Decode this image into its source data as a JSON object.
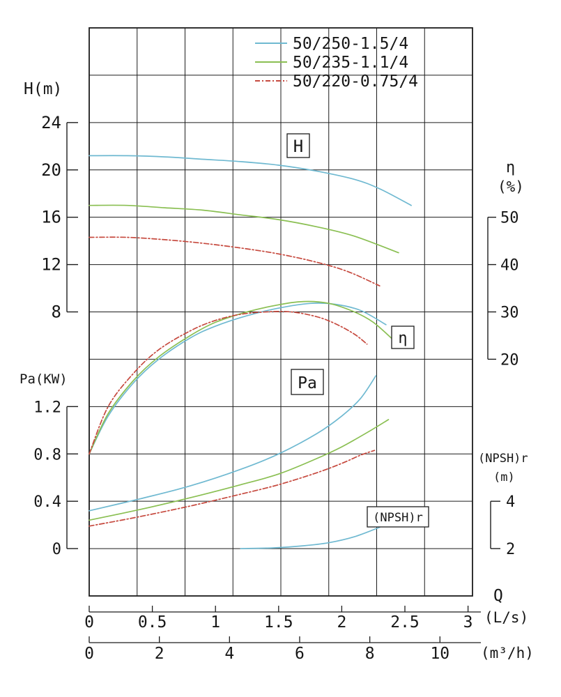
{
  "chart_data": {
    "type": "line",
    "x_axis": {
      "label": "Q",
      "primary_unit": "(L/s)",
      "primary_ticks": [
        "0",
        "0.5",
        "1",
        "1.5",
        "2",
        "2.5",
        "3"
      ],
      "secondary_unit": "(m³/h)",
      "secondary_ticks": [
        "0",
        "2",
        "4",
        "6",
        "8",
        "10"
      ]
    },
    "y_axes": {
      "h": {
        "title": "H(m)",
        "ticks": [
          "24",
          "20",
          "16",
          "12",
          "8"
        ]
      },
      "pa": {
        "title": "Pa(KW)",
        "ticks": [
          "1.2",
          "0.8",
          "0.4",
          "0"
        ]
      },
      "eta": {
        "title": "η",
        "title_unit": "(%)",
        "ticks": [
          "50",
          "40",
          "30",
          "20"
        ]
      },
      "npsh": {
        "title": "(NPSH)r",
        "title_unit": "(m)",
        "ticks": [
          "4",
          "2"
        ]
      }
    },
    "curve_labels": {
      "h": "H",
      "eta": "η",
      "pa": "Pa",
      "npsh": "(NPSH)r"
    },
    "legend": [
      {
        "label": "50/250-1.5/4",
        "color": "#6fb9d1",
        "dash": ""
      },
      {
        "label": "50/235-1.1/4",
        "color": "#8abf52",
        "dash": ""
      },
      {
        "label": "50/220-0.75/4",
        "color": "#c6493e",
        "dash": "7 3 2 3"
      }
    ],
    "series": [
      {
        "pump": "50/250-1.5/4",
        "quantity": "H",
        "unit": "m",
        "color": "#6fb9d1",
        "dash": "",
        "points": [
          [
            0,
            21.2
          ],
          [
            0.3,
            21.2
          ],
          [
            0.6,
            21.1
          ],
          [
            0.9,
            20.9
          ],
          [
            1.2,
            20.7
          ],
          [
            1.5,
            20.4
          ],
          [
            1.8,
            19.9
          ],
          [
            2.1,
            19.2
          ],
          [
            2.3,
            18.4
          ],
          [
            2.55,
            17.0
          ]
        ]
      },
      {
        "pump": "50/235-1.1/4",
        "quantity": "H",
        "unit": "m",
        "color": "#8abf52",
        "dash": "",
        "points": [
          [
            0,
            17.0
          ],
          [
            0.3,
            17.0
          ],
          [
            0.6,
            16.8
          ],
          [
            0.9,
            16.6
          ],
          [
            1.2,
            16.2
          ],
          [
            1.5,
            15.8
          ],
          [
            1.8,
            15.2
          ],
          [
            2.1,
            14.4
          ],
          [
            2.45,
            13.0
          ]
        ]
      },
      {
        "pump": "50/220-0.75/4",
        "quantity": "H",
        "unit": "m",
        "color": "#c6493e",
        "dash": "7 3 2 3",
        "points": [
          [
            0,
            14.3
          ],
          [
            0.3,
            14.3
          ],
          [
            0.6,
            14.1
          ],
          [
            0.9,
            13.8
          ],
          [
            1.2,
            13.4
          ],
          [
            1.5,
            12.9
          ],
          [
            1.8,
            12.2
          ],
          [
            2.05,
            11.4
          ],
          [
            2.3,
            10.2
          ]
        ]
      },
      {
        "pump": "50/250-1.5/4",
        "quantity": "eta",
        "unit": "%",
        "color": "#6fb9d1",
        "dash": "",
        "points": [
          [
            0,
            0
          ],
          [
            0.15,
            8
          ],
          [
            0.35,
            15
          ],
          [
            0.55,
            20
          ],
          [
            0.8,
            24.5
          ],
          [
            1.0,
            27
          ],
          [
            1.25,
            29.2
          ],
          [
            1.5,
            30.8
          ],
          [
            1.75,
            31.8
          ],
          [
            1.95,
            31.6
          ],
          [
            2.15,
            30.3
          ],
          [
            2.35,
            27.3
          ]
        ]
      },
      {
        "pump": "50/235-1.1/4",
        "quantity": "eta",
        "unit": "%",
        "color": "#8abf52",
        "dash": "",
        "points": [
          [
            0,
            0
          ],
          [
            0.15,
            8.5
          ],
          [
            0.35,
            15.5
          ],
          [
            0.55,
            20.5
          ],
          [
            0.8,
            25
          ],
          [
            1.0,
            27.8
          ],
          [
            1.25,
            30
          ],
          [
            1.5,
            31.5
          ],
          [
            1.7,
            32.2
          ],
          [
            1.9,
            31.8
          ],
          [
            2.1,
            30
          ],
          [
            2.25,
            27.8
          ],
          [
            2.4,
            24.3
          ]
        ]
      },
      {
        "pump": "50/220-0.75/4",
        "quantity": "eta",
        "unit": "%",
        "color": "#c6493e",
        "dash": "7 3 2 3",
        "points": [
          [
            0,
            0
          ],
          [
            0.15,
            10
          ],
          [
            0.35,
            17
          ],
          [
            0.55,
            22
          ],
          [
            0.8,
            26
          ],
          [
            1.0,
            28.2
          ],
          [
            1.2,
            29.5
          ],
          [
            1.4,
            30
          ],
          [
            1.6,
            30
          ],
          [
            1.8,
            29
          ],
          [
            1.95,
            27.5
          ],
          [
            2.1,
            25.3
          ],
          [
            2.2,
            23.2
          ]
        ]
      },
      {
        "pump": "50/250-1.5/4",
        "quantity": "Pa",
        "unit": "KW",
        "color": "#6fb9d1",
        "dash": "",
        "points": [
          [
            0,
            0.32
          ],
          [
            0.4,
            0.42
          ],
          [
            0.8,
            0.53
          ],
          [
            1.2,
            0.67
          ],
          [
            1.5,
            0.8
          ],
          [
            1.8,
            0.97
          ],
          [
            2.0,
            1.12
          ],
          [
            2.15,
            1.27
          ],
          [
            2.27,
            1.46
          ]
        ]
      },
      {
        "pump": "50/235-1.1/4",
        "quantity": "Pa",
        "unit": "KW",
        "color": "#8abf52",
        "dash": "",
        "points": [
          [
            0,
            0.24
          ],
          [
            0.4,
            0.33
          ],
          [
            0.8,
            0.43
          ],
          [
            1.2,
            0.54
          ],
          [
            1.5,
            0.63
          ],
          [
            1.8,
            0.76
          ],
          [
            2.0,
            0.86
          ],
          [
            2.2,
            0.98
          ],
          [
            2.37,
            1.09
          ]
        ]
      },
      {
        "pump": "50/220-0.75/4",
        "quantity": "Pa",
        "unit": "KW",
        "color": "#c6493e",
        "dash": "7 3 2 3",
        "points": [
          [
            0,
            0.19
          ],
          [
            0.4,
            0.27
          ],
          [
            0.8,
            0.36
          ],
          [
            1.2,
            0.46
          ],
          [
            1.5,
            0.54
          ],
          [
            1.8,
            0.64
          ],
          [
            2.0,
            0.72
          ],
          [
            2.15,
            0.79
          ],
          [
            2.26,
            0.83
          ]
        ]
      },
      {
        "pump": "50/250-1.5/4",
        "quantity": "NPSHr",
        "unit": "m",
        "color": "#6fb9d1",
        "dash": "",
        "points": [
          [
            1.2,
            2.0
          ],
          [
            1.45,
            2.03
          ],
          [
            1.7,
            2.12
          ],
          [
            1.9,
            2.25
          ],
          [
            2.1,
            2.5
          ],
          [
            2.3,
            2.9
          ]
        ]
      }
    ],
    "axis_ranges": {
      "H_m": [
        8,
        24
      ],
      "eta_pct": [
        20,
        50
      ],
      "Pa_KW": [
        0,
        1.2
      ],
      "NPSHr_m": [
        2,
        4
      ],
      "Q_Ls": [
        0,
        3
      ],
      "Q_m3h": [
        0,
        10
      ]
    },
    "grid": "on",
    "legend_position": "top-center"
  }
}
